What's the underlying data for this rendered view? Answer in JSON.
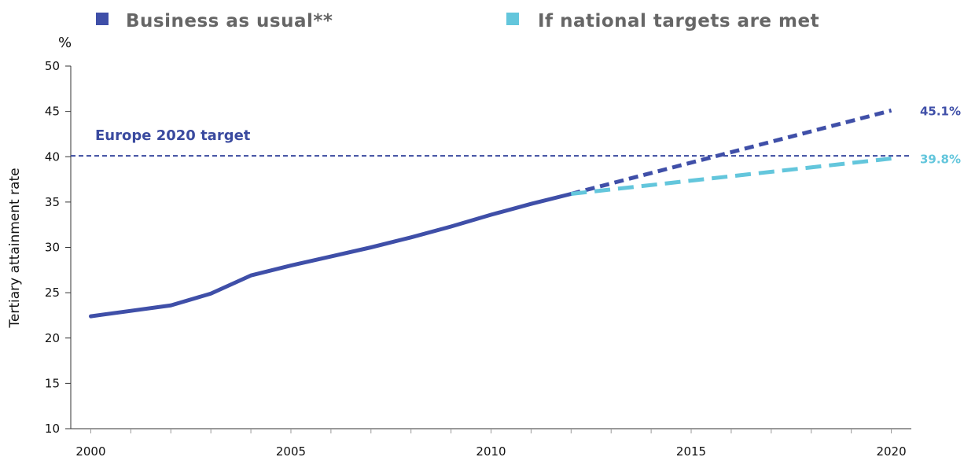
{
  "colors": {
    "bau": "#3f4fa8",
    "national": "#63c6dc",
    "target": "#3a4a9f",
    "axis": "#333333",
    "grid": "#999999"
  },
  "legend": {
    "bau_label": "Business as usual**",
    "national_label": "If national targets are met"
  },
  "chart_data": {
    "type": "line",
    "title": "",
    "ylabel": "Tertiary attainment rate",
    "yunit": "%",
    "xlabel": "",
    "xlim": [
      1999.5,
      2020.5
    ],
    "ylim": [
      10,
      50
    ],
    "yticks": [
      10,
      15,
      20,
      25,
      30,
      35,
      40,
      45,
      50
    ],
    "xticks": [
      2000,
      2005,
      2010,
      2015,
      2020
    ],
    "grid": false,
    "legend_position": "top",
    "series": [
      {
        "name": "Business as usual**",
        "style": "solid",
        "x": [
          2000,
          2001,
          2002,
          2003,
          2004,
          2005,
          2006,
          2007,
          2008,
          2009,
          2010,
          2011,
          2012
        ],
        "y": [
          22.4,
          23.0,
          23.6,
          24.9,
          26.9,
          28.0,
          29.0,
          30.0,
          31.1,
          32.3,
          33.6,
          34.8,
          35.9
        ]
      },
      {
        "name": "Business as usual**",
        "style": "dashed",
        "x": [
          2012,
          2020
        ],
        "y": [
          35.9,
          45.1
        ]
      },
      {
        "name": "If national targets are met",
        "style": "dashed",
        "x": [
          2012,
          2020
        ],
        "y": [
          35.9,
          39.8
        ]
      }
    ],
    "reference_line": {
      "value": 40.1,
      "label": "Europe 2020 target"
    },
    "end_labels": [
      {
        "series": "Business as usual**",
        "value": 45.1,
        "text": "45.1%"
      },
      {
        "series": "If national targets are met",
        "value": 39.8,
        "text": "39.8%"
      }
    ]
  }
}
